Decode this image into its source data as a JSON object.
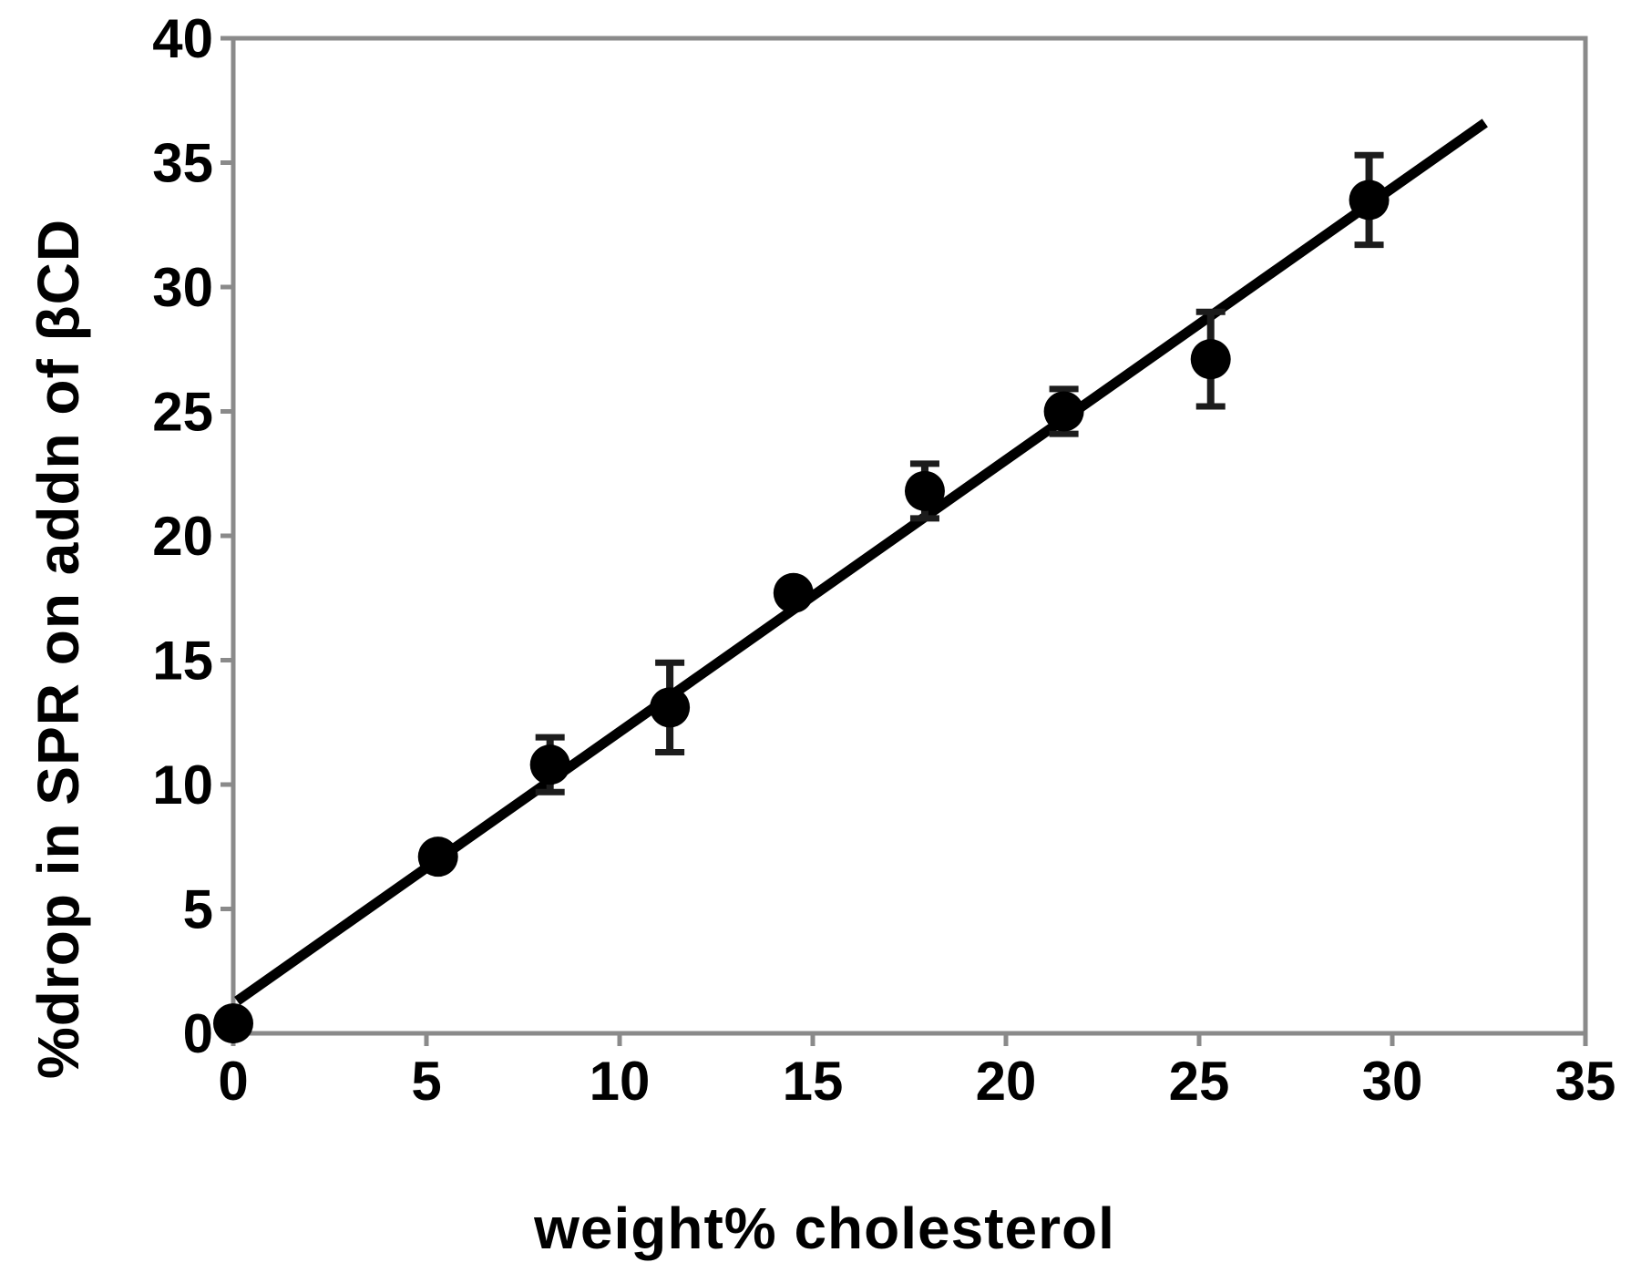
{
  "chart_data": {
    "type": "scatter",
    "title": "",
    "xlabel": "weight% cholesterol",
    "ylabel": "%drop in SPR on addn of βCD",
    "xlim": [
      0,
      35
    ],
    "ylim": [
      0,
      40
    ],
    "x_ticks": [
      0,
      5,
      10,
      15,
      20,
      25,
      30,
      35
    ],
    "y_ticks": [
      0,
      5,
      10,
      15,
      20,
      25,
      30,
      35,
      40
    ],
    "grid": false,
    "legend": null,
    "frame": "full-box",
    "points": [
      {
        "x": 0.0,
        "y": 0.4,
        "err": 0
      },
      {
        "x": 5.3,
        "y": 7.1,
        "err": 0
      },
      {
        "x": 8.2,
        "y": 10.8,
        "err": 1.1
      },
      {
        "x": 11.3,
        "y": 13.1,
        "err": 1.8
      },
      {
        "x": 14.5,
        "y": 17.7,
        "err": 0
      },
      {
        "x": 17.9,
        "y": 21.8,
        "err": 1.1
      },
      {
        "x": 21.5,
        "y": 25.0,
        "err": 0.9
      },
      {
        "x": 25.3,
        "y": 27.1,
        "err": 1.9
      },
      {
        "x": 29.4,
        "y": 33.5,
        "err": 1.8
      }
    ],
    "fit_line": {
      "x1": 0.1,
      "y1": 1.3,
      "x2": 32.4,
      "y2": 36.6
    },
    "colors": {
      "background": "#ffffff",
      "frame": "#8a8a8a",
      "marker": "#000000",
      "fit_line": "#000000",
      "error_bar": "#1c1c1c",
      "tick_label": "#000000"
    }
  }
}
